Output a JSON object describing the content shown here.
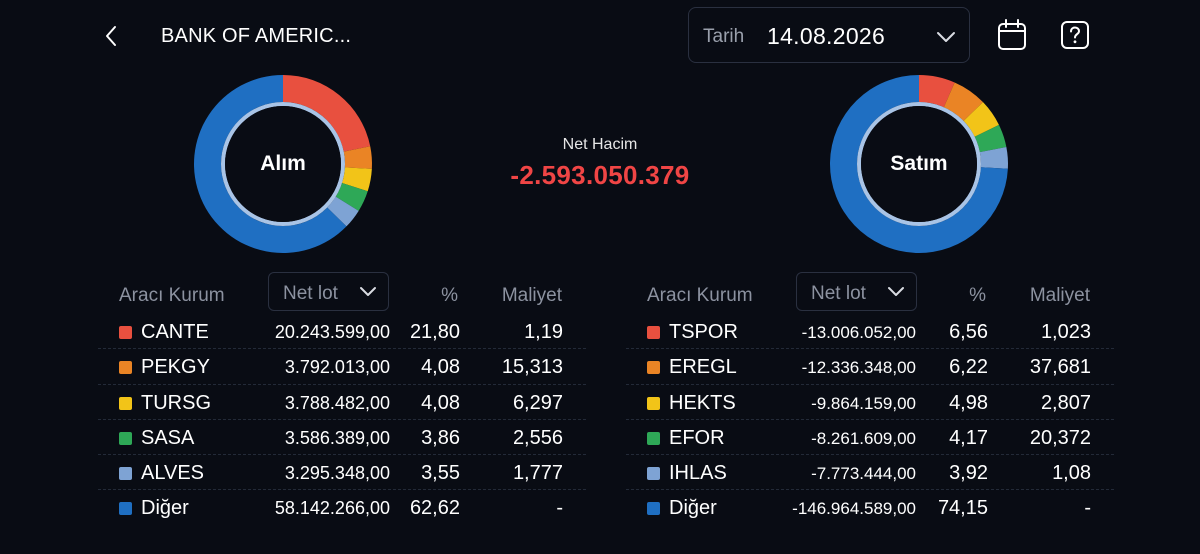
{
  "header": {
    "title": "BANK OF AMERIC...",
    "date_label": "Tarih",
    "date_value": "14.08.2026"
  },
  "net": {
    "label": "Net Hacim",
    "value": "-2.593.050.379"
  },
  "colors": {
    "background": "#090c14",
    "negative": "#f04545",
    "swatches": [
      "#e8503f",
      "#ea8425",
      "#f2c418",
      "#2ea857",
      "#7ea3d4",
      "#1f6fc2"
    ]
  },
  "buy": {
    "label": "Alım",
    "headers": {
      "broker": "Aracı Kurum",
      "metric": "Net lot",
      "pct": "%",
      "cost": "Maliyet"
    },
    "rows": [
      {
        "symbol": "CANTE",
        "lot": "20.243.599,00",
        "pct": "21,80",
        "cost": "1,19",
        "share": 21.8
      },
      {
        "symbol": "PEKGY",
        "lot": "3.792.013,00",
        "pct": "4,08",
        "cost": "15,313",
        "share": 4.08
      },
      {
        "symbol": "TURSG",
        "lot": "3.788.482,00",
        "pct": "4,08",
        "cost": "6,297",
        "share": 4.08
      },
      {
        "symbol": "SASA",
        "lot": "3.586.389,00",
        "pct": "3,86",
        "cost": "2,556",
        "share": 3.86
      },
      {
        "symbol": "ALVES",
        "lot": "3.295.348,00",
        "pct": "3,55",
        "cost": "1,777",
        "share": 3.55
      },
      {
        "symbol": "Diğer",
        "lot": "58.142.266,00",
        "pct": "62,62",
        "cost": "-",
        "share": 62.62
      }
    ]
  },
  "sell": {
    "label": "Satım",
    "headers": {
      "broker": "Aracı Kurum",
      "metric": "Net lot",
      "pct": "%",
      "cost": "Maliyet"
    },
    "rows": [
      {
        "symbol": "TSPOR",
        "lot": "-13.006.052,00",
        "pct": "6,56",
        "cost": "1,023",
        "share": 6.56
      },
      {
        "symbol": "EREGL",
        "lot": "-12.336.348,00",
        "pct": "6,22",
        "cost": "37,681",
        "share": 6.22
      },
      {
        "symbol": "HEKTS",
        "lot": "-9.864.159,00",
        "pct": "4,98",
        "cost": "2,807",
        "share": 4.98
      },
      {
        "symbol": "EFOR",
        "lot": "-8.261.609,00",
        "pct": "4,17",
        "cost": "20,372",
        "share": 4.17
      },
      {
        "symbol": "IHLAS",
        "lot": "-7.773.444,00",
        "pct": "3,92",
        "cost": "1,08",
        "share": 3.92
      },
      {
        "symbol": "Diğer",
        "lot": "-146.964.589,00",
        "pct": "74,15",
        "cost": "-",
        "share": 74.15
      }
    ]
  }
}
